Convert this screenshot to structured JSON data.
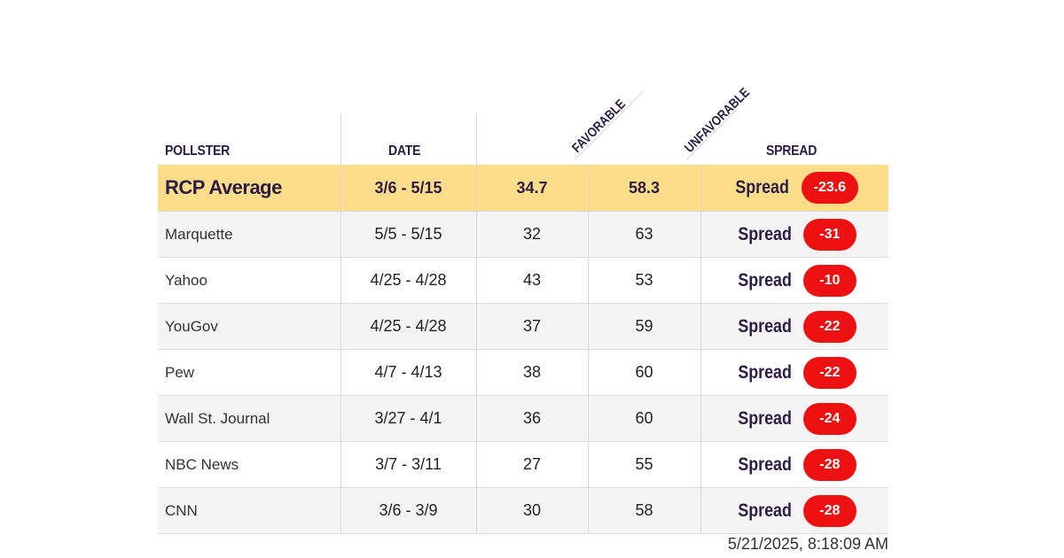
{
  "chart_data": {
    "type": "table",
    "columns": [
      "POLLSTER",
      "DATE",
      "FAVORABLE",
      "UNFAVORABLE",
      "SPREAD"
    ],
    "average": {
      "pollster": "RCP Average",
      "date": "3/6 - 5/15",
      "favorable": "34.7",
      "unfavorable": "58.3",
      "spread_label": "Spread",
      "spread": "-23.6"
    },
    "rows": [
      {
        "pollster": "Marquette",
        "date": "5/5 - 5/15",
        "favorable": "32",
        "unfavorable": "63",
        "spread_label": "Spread",
        "spread": "-31"
      },
      {
        "pollster": "Yahoo",
        "date": "4/25 - 4/28",
        "favorable": "43",
        "unfavorable": "53",
        "spread_label": "Spread",
        "spread": "-10"
      },
      {
        "pollster": "YouGov",
        "date": "4/25 - 4/28",
        "favorable": "37",
        "unfavorable": "59",
        "spread_label": "Spread",
        "spread": "-22"
      },
      {
        "pollster": "Pew",
        "date": "4/7 - 4/13",
        "favorable": "38",
        "unfavorable": "60",
        "spread_label": "Spread",
        "spread": "-22"
      },
      {
        "pollster": "Wall St. Journal",
        "date": "3/27 - 4/1",
        "favorable": "36",
        "unfavorable": "60",
        "spread_label": "Spread",
        "spread": "-24"
      },
      {
        "pollster": "NBC News",
        "date": "3/7 - 3/11",
        "favorable": "27",
        "unfavorable": "55",
        "spread_label": "Spread",
        "spread": "-28"
      },
      {
        "pollster": "CNN",
        "date": "3/6 - 3/9",
        "favorable": "30",
        "unfavorable": "58",
        "spread_label": "Spread",
        "spread": "-28"
      }
    ]
  },
  "timestamp": "5/21/2025, 8:18:09 AM",
  "colors": {
    "average_row": "#fddc8a",
    "spread_pill": "#ee1111",
    "header_text": "#2a1d45"
  }
}
